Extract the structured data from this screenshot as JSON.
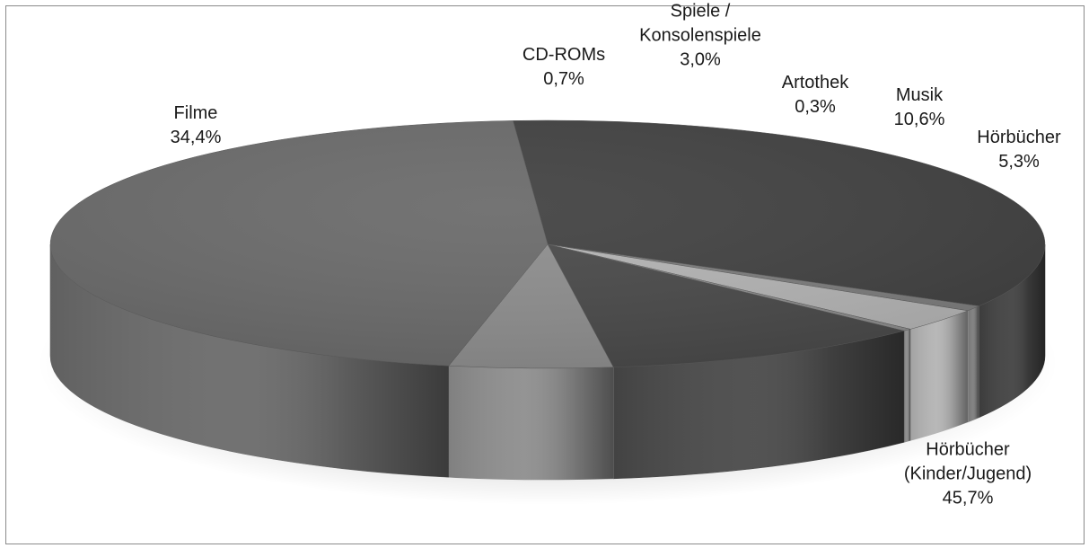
{
  "chart_data": {
    "type": "pie",
    "style": "3d",
    "title": "",
    "legend": "none",
    "slices": [
      {
        "label": [
          "Filme"
        ],
        "value_label": "34,4%",
        "value": 34.4,
        "color": "#424242"
      },
      {
        "label": [
          "CD-ROMs"
        ],
        "value_label": "0,7%",
        "value": 0.7,
        "color": "#7d7d7d"
      },
      {
        "label": [
          "Spiele /",
          "Konsolenspiele"
        ],
        "value_label": "3,0%",
        "value": 3.0,
        "color": "#b4b4b4"
      },
      {
        "label": [
          "Artothek"
        ],
        "value_label": "0,3%",
        "value": 0.3,
        "color": "#8c8c8c"
      },
      {
        "label": [
          "Musik"
        ],
        "value_label": "10,6%",
        "value": 10.6,
        "color": "#4a4a4a"
      },
      {
        "label": [
          "Hörbücher"
        ],
        "value_label": "5,3%",
        "value": 5.3,
        "color": "#8e8e8e"
      },
      {
        "label": [
          "Hörbücher",
          "(Kinder/Jugend)"
        ],
        "value_label": "45,7%",
        "value": 45.7,
        "color": "#6b6b6b"
      }
    ]
  }
}
